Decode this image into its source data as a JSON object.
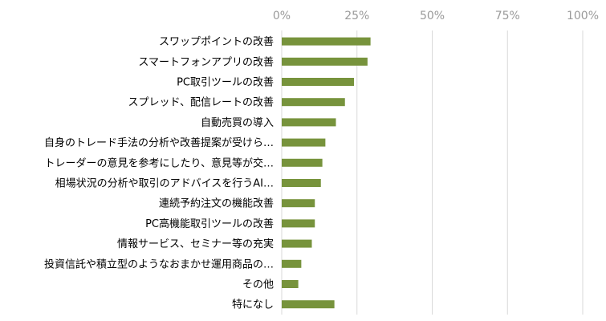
{
  "chart_data": {
    "type": "bar",
    "orientation": "horizontal",
    "title": "",
    "xlabel": "",
    "ylabel": "",
    "xlim": [
      0,
      100
    ],
    "ticks": [
      "0%",
      "25%",
      "50%",
      "75%",
      "100%"
    ],
    "tick_values": [
      0,
      25,
      50,
      75,
      100
    ],
    "grid": true,
    "legend": "none",
    "bar_color": "#77933c",
    "grid_color": "#d9d9d9",
    "categories": [
      "スワップポイントの改善",
      "スマートフォンアプリの改善",
      "PC取引ツールの改善",
      "スプレッド、配信レートの改善",
      "自動売買の導入",
      "自身のトレード手法の分析や改善提案が受けら…",
      "トレーダーの意見を参考にしたり、意見等が交…",
      "相場状況の分析や取引のアドバイスを行うAI…",
      "連続予約注文の機能改善",
      "PC高機能取引ツールの改善",
      "情報サービス、セミナー等の充実",
      "投資信託や積立型のようなおまかせ運用商品の…",
      "その他",
      "特になし"
    ],
    "values": [
      29.5,
      28.5,
      24,
      21,
      18,
      14.5,
      13.5,
      13,
      11,
      11,
      10,
      6.5,
      5.5,
      17.5
    ]
  }
}
